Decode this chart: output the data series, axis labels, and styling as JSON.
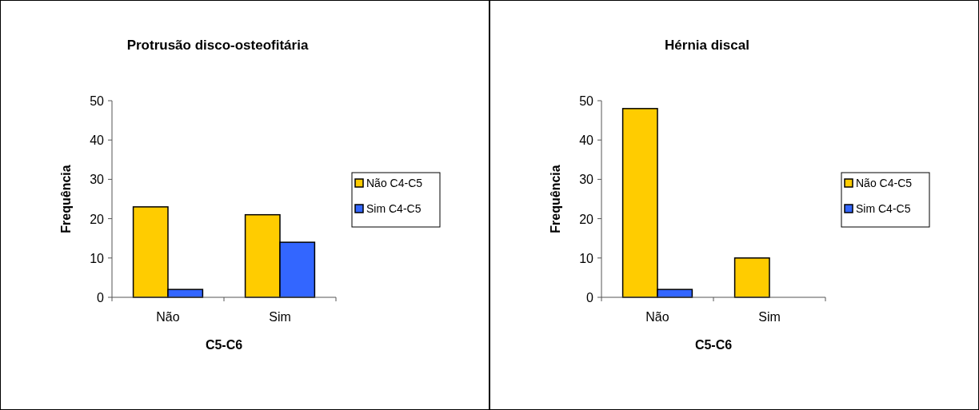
{
  "chart_data": [
    {
      "type": "bar",
      "title": "Protrusão disco-osteofitária",
      "xlabel": "C5-C6",
      "ylabel": "Frequência",
      "categories": [
        "Não",
        "Sim"
      ],
      "series": [
        {
          "name": "Não C4-C5",
          "color": "#ffcc00",
          "values": [
            23,
            21
          ]
        },
        {
          "name": "Sim C4-C5",
          "color": "#3366ff",
          "values": [
            2,
            14
          ]
        }
      ],
      "ylim": [
        0,
        50
      ],
      "yticks": [
        0,
        10,
        20,
        30,
        40,
        50
      ],
      "grid": false,
      "legend": "right"
    },
    {
      "type": "bar",
      "title": "Hérnia discal",
      "xlabel": "C5-C6",
      "ylabel": "Frequência",
      "categories": [
        "Não",
        "Sim"
      ],
      "series": [
        {
          "name": "Não C4-C5",
          "color": "#ffcc00",
          "values": [
            48,
            10
          ]
        },
        {
          "name": "Sim C4-C5",
          "color": "#3366ff",
          "values": [
            2,
            0
          ]
        }
      ],
      "ylim": [
        0,
        50
      ],
      "yticks": [
        0,
        10,
        20,
        30,
        40,
        50
      ],
      "grid": false,
      "legend": "right"
    }
  ]
}
